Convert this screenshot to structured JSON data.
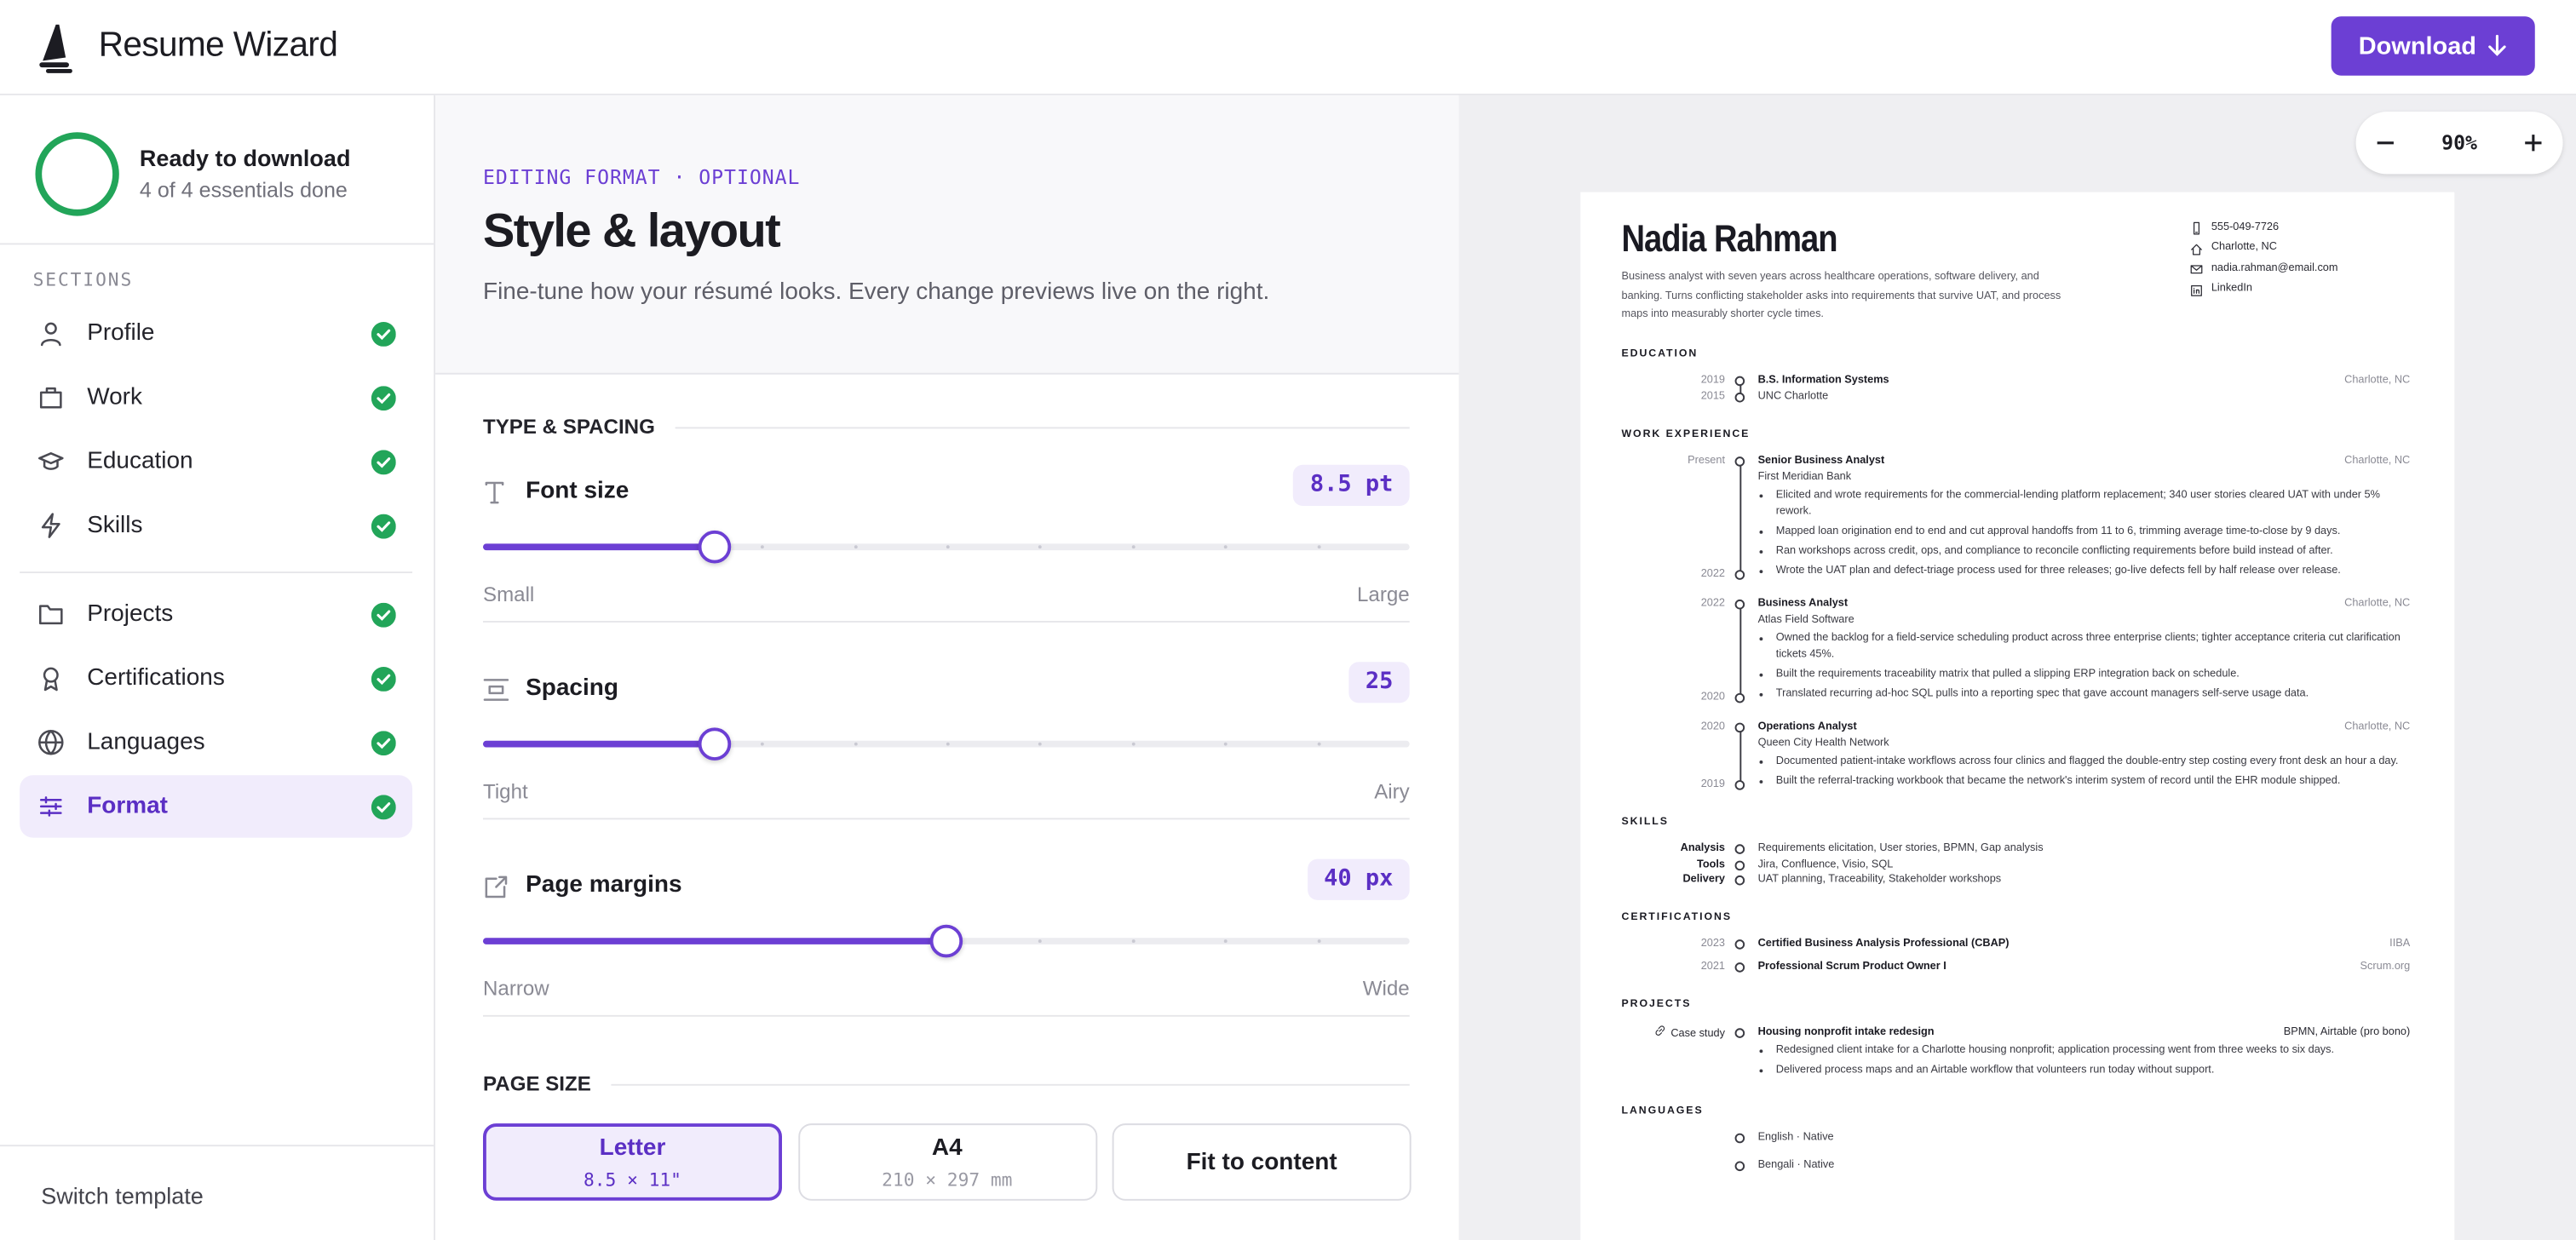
{
  "header": {
    "brand": "Resume Wizard",
    "download": "Download"
  },
  "sidebar": {
    "status": {
      "title": "Ready to download",
      "subtitle": "4 of 4 essentials done"
    },
    "sections_label": "SECTIONS",
    "sections": [
      "Profile",
      "Work",
      "Education",
      "Skills",
      "Projects",
      "Certifications",
      "Languages",
      "Format"
    ],
    "footer": "Switch template"
  },
  "editor": {
    "eyebrow": "EDITING FORMAT · OPTIONAL",
    "title": "Style & layout",
    "subtitle": "Fine-tune how your résumé looks. Every change previews live on the right.",
    "type_spacing": {
      "heading": "TYPE & SPACING",
      "sliders": [
        {
          "label": "Font size",
          "value": "8.5 pt",
          "min": "Small",
          "max": "Large"
        },
        {
          "label": "Spacing",
          "value": "25",
          "min": "Tight",
          "max": "Airy"
        },
        {
          "label": "Page margins",
          "value": "40 px",
          "min": "Narrow",
          "max": "Wide"
        }
      ]
    },
    "page_size": {
      "heading": "PAGE SIZE",
      "options": [
        {
          "label": "Letter",
          "detail": "8.5 × 11\""
        },
        {
          "label": "A4",
          "detail": "210 × 297 mm"
        },
        {
          "label": "Fit to content"
        }
      ]
    }
  },
  "preview": {
    "zoom": "90%",
    "resume": {
      "name": "Nadia Rahman",
      "summary": "Business analyst with seven years across healthcare operations, software delivery, and banking. Turns conflicting stakeholder asks into requirements that survive UAT, and process maps into measurably shorter cycle times.",
      "contacts": [
        "555-049-7726",
        "Charlotte, NC",
        "nadia.rahman@email.com",
        "LinkedIn"
      ],
      "education": {
        "title": "EDUCATION",
        "entries": [
          {
            "dates": [
              "2019",
              "2015"
            ],
            "title": "B.S. Information Systems",
            "org": "UNC Charlotte",
            "location": "Charlotte, NC"
          }
        ]
      },
      "work": {
        "title": "WORK EXPERIENCE",
        "entries": [
          {
            "dates": [
              "Present",
              "2022"
            ],
            "title": "Senior Business Analyst",
            "org": "First Meridian Bank",
            "location": "Charlotte, NC",
            "bullets": [
              "Elicited and wrote requirements for the commercial-lending platform replacement; 340 user stories cleared UAT with under 5% rework.",
              "Mapped loan origination end to end and cut approval handoffs from 11 to 6, trimming average time-to-close by 9 days.",
              "Ran workshops across credit, ops, and compliance to reconcile conflicting requirements before build instead of after.",
              "Wrote the UAT plan and defect-triage process used for three releases; go-live defects fell by half release over release."
            ]
          },
          {
            "dates": [
              "2022",
              "2020"
            ],
            "title": "Business Analyst",
            "org": "Atlas Field Software",
            "location": "Charlotte, NC",
            "bullets": [
              "Owned the backlog for a field-service scheduling product across three enterprise clients; tighter acceptance criteria cut clarification tickets 45%.",
              "Built the requirements traceability matrix that pulled a slipping ERP integration back on schedule.",
              "Translated recurring ad-hoc SQL pulls into a reporting spec that gave account managers self-serve usage data."
            ]
          },
          {
            "dates": [
              "2020",
              "2019"
            ],
            "title": "Operations Analyst",
            "org": "Queen City Health Network",
            "location": "Charlotte, NC",
            "bullets": [
              "Documented patient-intake workflows across four clinics and flagged the double-entry step costing every front desk an hour a day.",
              "Built the referral-tracking workbook that became the network's interim system of record until the EHR module shipped."
            ]
          }
        ]
      },
      "skills": {
        "title": "SKILLS",
        "items": [
          {
            "label": "Analysis",
            "value": "Requirements elicitation, User stories, BPMN, Gap analysis"
          },
          {
            "label": "Tools",
            "value": "Jira, Confluence, Visio, SQL"
          },
          {
            "label": "Delivery",
            "value": "UAT planning, Traceability, Stakeholder workshops"
          }
        ]
      },
      "certifications": {
        "title": "CERTIFICATIONS",
        "items": [
          {
            "year": "2023",
            "title": "Certified Business Analysis Professional (CBAP)",
            "issuer": "IIBA"
          },
          {
            "year": "2021",
            "title": "Professional Scrum Product Owner I",
            "issuer": "Scrum.org"
          }
        ]
      },
      "projects": {
        "title": "PROJECTS",
        "entries": [
          {
            "label": "Case study",
            "title": "Housing nonprofit intake redesign",
            "tech": "BPMN, Airtable (pro bono)",
            "bullets": [
              "Redesigned client intake for a Charlotte housing nonprofit; application processing went from three weeks to six days.",
              "Delivered process maps and an Airtable workflow that volunteers run today without support."
            ]
          }
        ]
      },
      "languages": {
        "title": "LANGUAGES",
        "items": [
          "English · Native",
          "Bengali · Native"
        ]
      }
    }
  }
}
